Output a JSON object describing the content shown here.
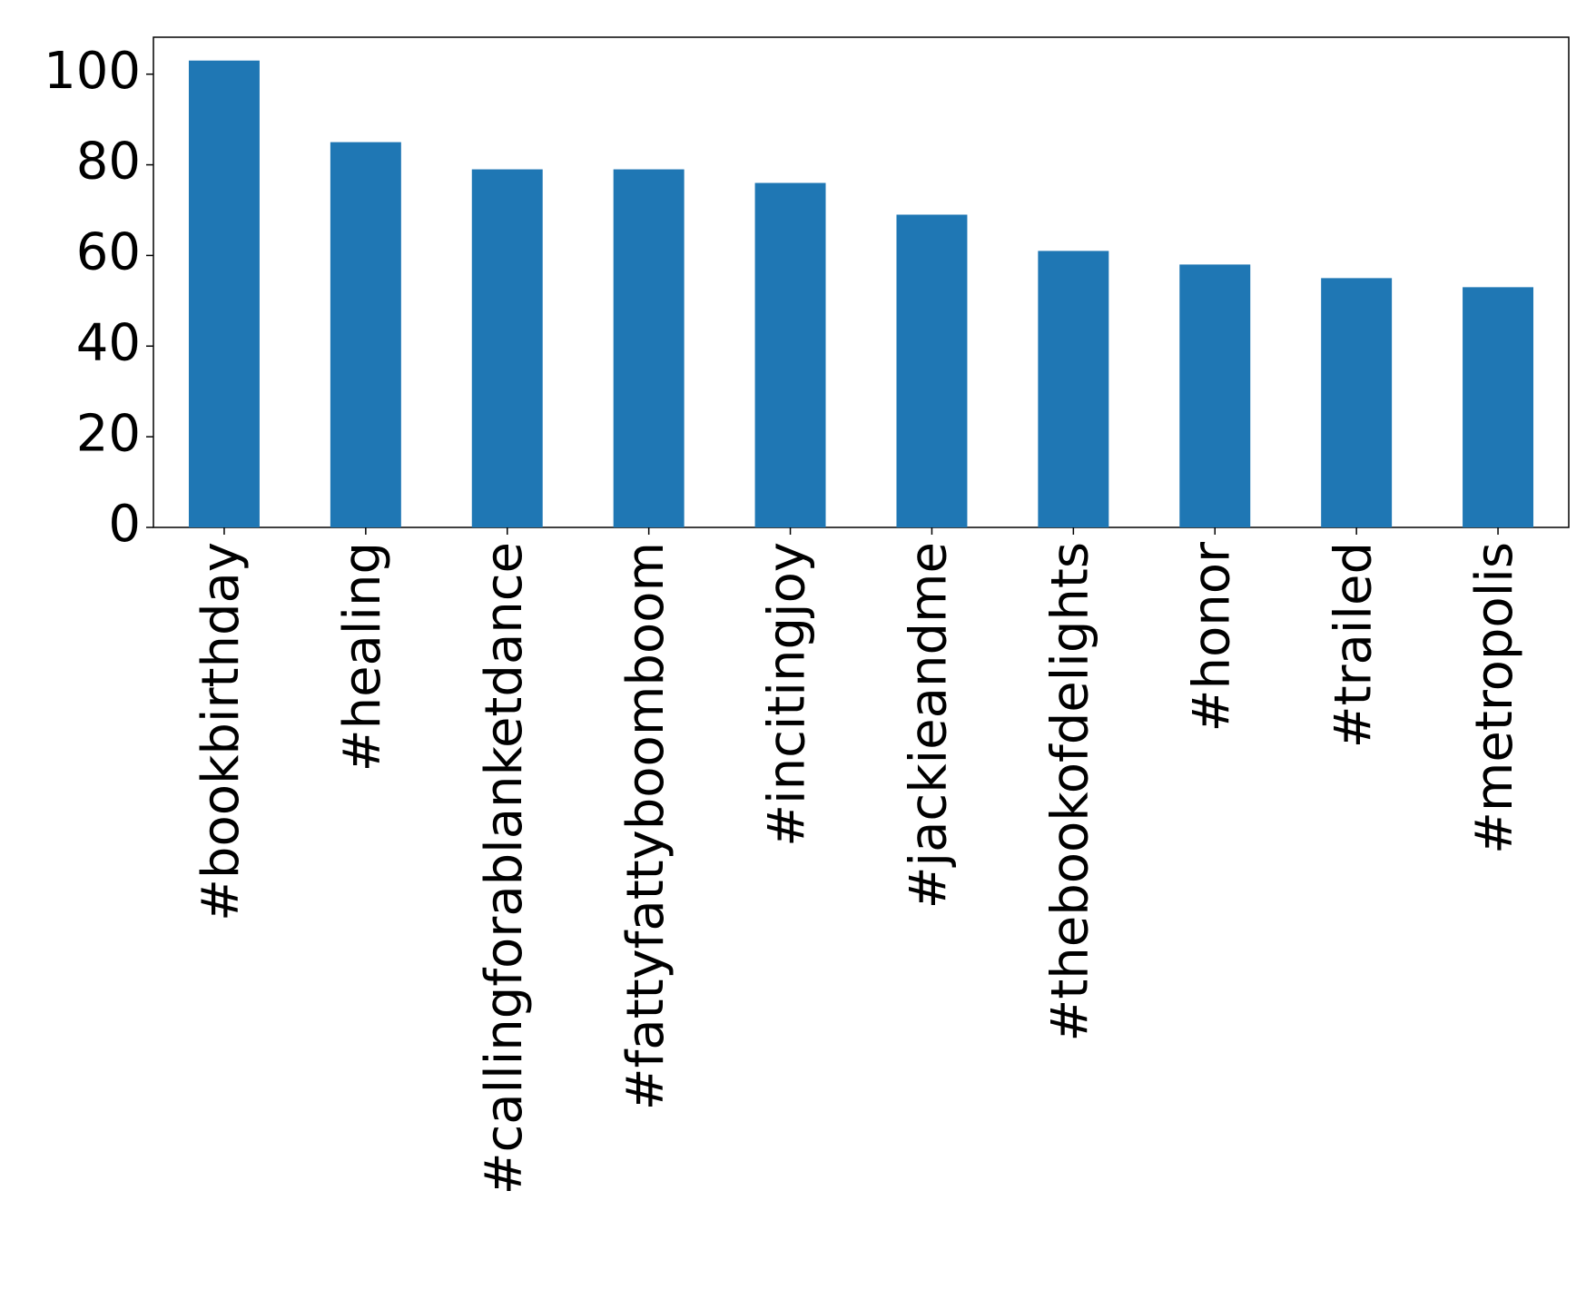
{
  "chart_data": {
    "type": "bar",
    "categories": [
      "#bookbirthday",
      "#healing",
      "#callingforablanketdance",
      "#fattyfattyboomboom",
      "#incitingjoy",
      "#jackieandme",
      "#thebookofdelights",
      "#honor",
      "#trailed",
      "#metropolis"
    ],
    "values": [
      103,
      85,
      79,
      79,
      76,
      69,
      61,
      58,
      55,
      53
    ],
    "color": "#1f77b4",
    "ylim": [
      0,
      108.15
    ],
    "yticks": [
      0,
      20,
      40,
      60,
      80,
      100
    ]
  }
}
